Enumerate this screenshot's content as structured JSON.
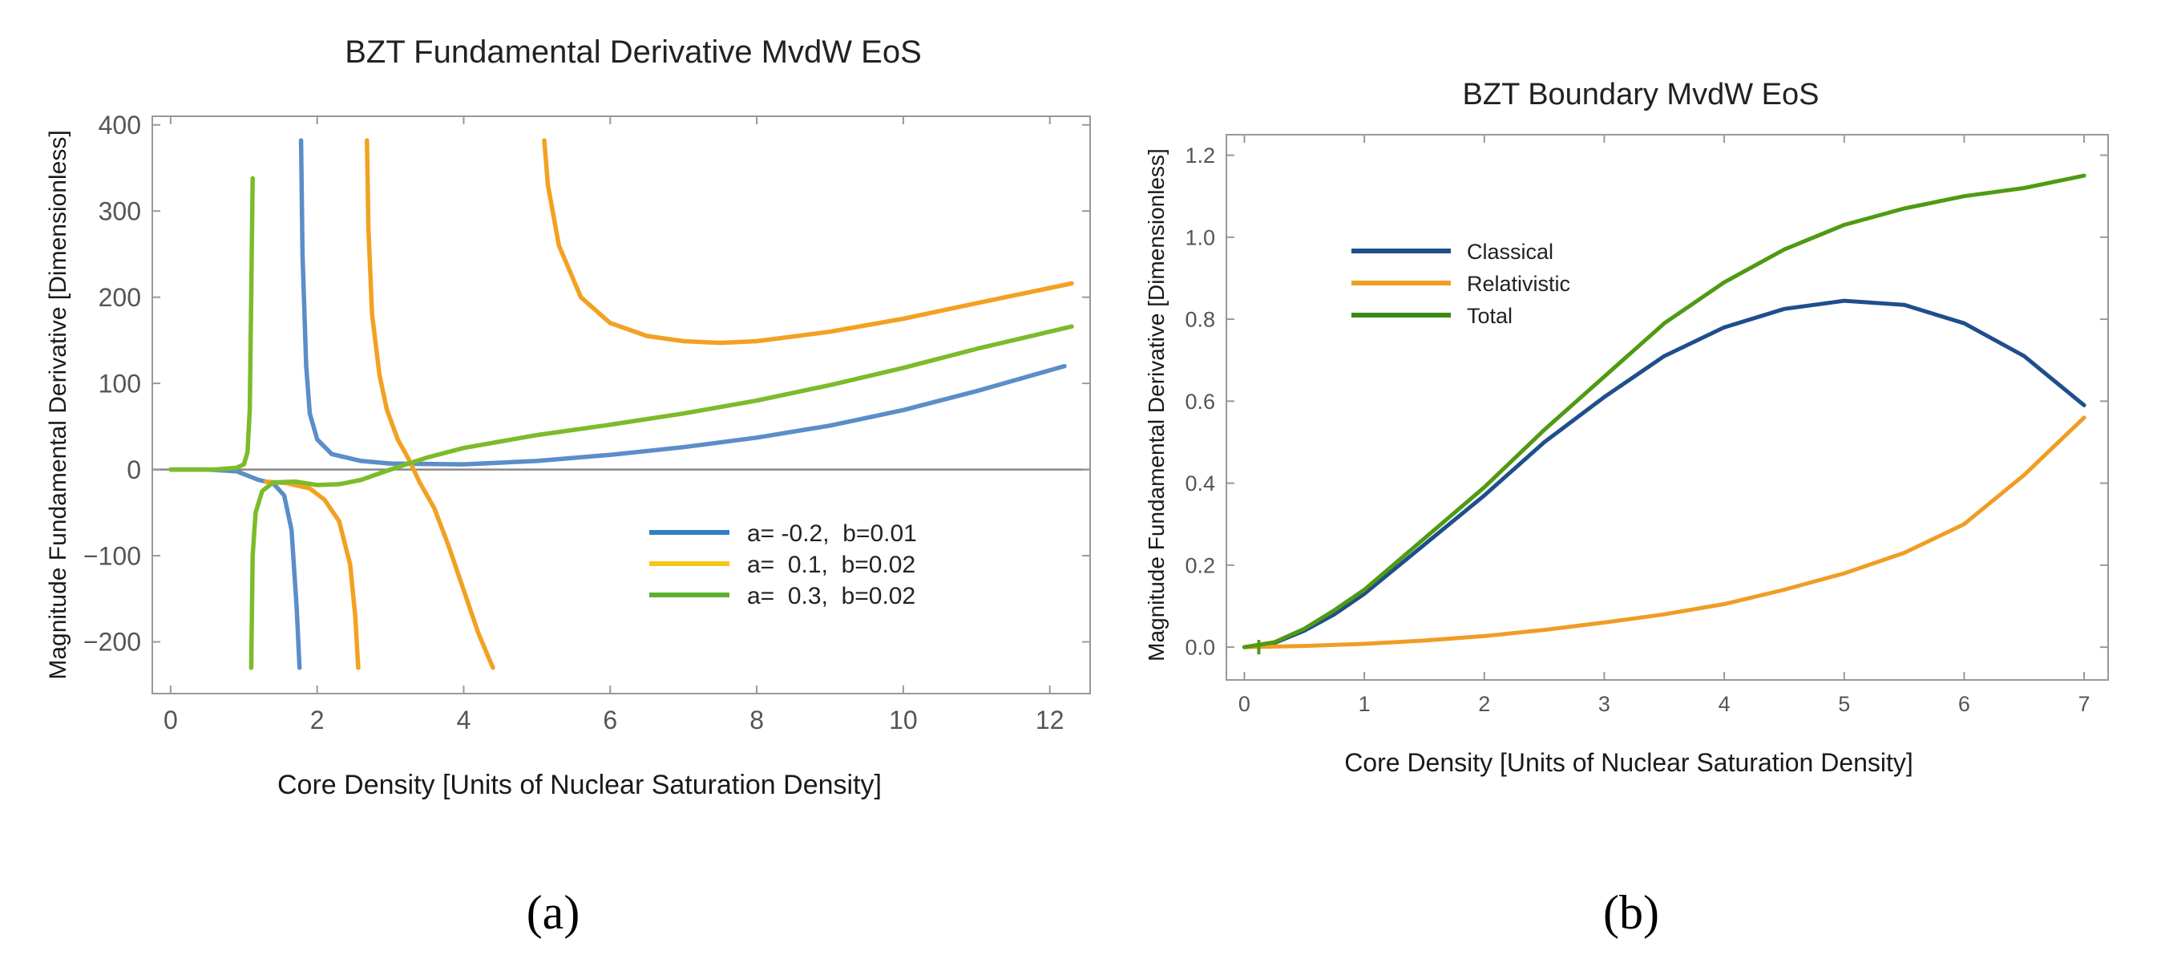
{
  "figure": {
    "panel_labels": [
      "(a)",
      "(b)"
    ],
    "colors": {
      "blue_a": "#5b8ec8",
      "orange_a": "#f2a122",
      "green_a": "#7cbb2a",
      "classical_b": "#1f4e8c",
      "relativistic_b": "#ef9d24",
      "total_b": "#4f9a12",
      "zero_line": "#888888",
      "frame": "#999999"
    }
  },
  "chart_data": [
    {
      "type": "line",
      "title": "BZT Fundamental Derivative MvdW EoS",
      "xlabel": "Core Density [Units of Nuclear Saturation Density]",
      "ylabel": "Magnitude Fundamental Derivative [Dimensionless]",
      "xlim": [
        -0.25,
        12.55
      ],
      "ylim": [
        -260,
        410
      ],
      "xticks": [
        0,
        2,
        4,
        6,
        8,
        10,
        12
      ],
      "yticks": [
        -200,
        -100,
        0,
        100,
        200,
        300,
        400
      ],
      "ytick_labels": [
        "−200",
        "−100",
        "0",
        "100",
        "200",
        "300",
        "400"
      ],
      "zero_line": true,
      "grid": false,
      "legend_position": "lower-right",
      "legend": [
        {
          "label": "a= -0.2,  b=0.01",
          "color": "#2f7fc4"
        },
        {
          "label": "a=  0.1,  b=0.02",
          "color": "#f5c518"
        },
        {
          "label": "a=  0.3,  b=0.02",
          "color": "#5bb12f"
        }
      ],
      "series": [
        {
          "color": "#5b8ec8",
          "segments": [
            [
              [
                0,
                0
              ],
              [
                0.5,
                0
              ],
              [
                0.9,
                -2
              ],
              [
                1.2,
                -12
              ],
              [
                1.4,
                -16
              ],
              [
                1.55,
                -30
              ],
              [
                1.65,
                -70
              ],
              [
                1.72,
                -160
              ],
              [
                1.76,
                -230
              ]
            ],
            [
              [
                1.78,
                382
              ],
              [
                1.8,
                250
              ],
              [
                1.85,
                120
              ],
              [
                1.9,
                65
              ],
              [
                2.0,
                35
              ],
              [
                2.2,
                18
              ],
              [
                2.6,
                10
              ],
              [
                3.0,
                7
              ],
              [
                4.0,
                6
              ],
              [
                5.0,
                10
              ],
              [
                6.0,
                17
              ],
              [
                7.0,
                26
              ],
              [
                8.0,
                37
              ],
              [
                9.0,
                51
              ],
              [
                10.0,
                69
              ],
              [
                11.0,
                91
              ],
              [
                12.2,
                120
              ]
            ]
          ]
        },
        {
          "color": "#f2a122",
          "segments": [
            [
              [
                1.3,
                -14
              ],
              [
                1.6,
                -16
              ],
              [
                1.9,
                -22
              ],
              [
                2.1,
                -35
              ],
              [
                2.3,
                -60
              ],
              [
                2.45,
                -110
              ],
              [
                2.52,
                -170
              ],
              [
                2.56,
                -230
              ]
            ],
            [
              [
                2.68,
                382
              ],
              [
                2.7,
                280
              ],
              [
                2.75,
                180
              ],
              [
                2.85,
                110
              ],
              [
                2.95,
                70
              ],
              [
                3.1,
                35
              ],
              [
                3.25,
                12
              ],
              [
                3.4,
                -15
              ],
              [
                3.6,
                -45
              ],
              [
                3.8,
                -90
              ],
              [
                4.0,
                -140
              ],
              [
                4.2,
                -190
              ],
              [
                4.4,
                -230
              ]
            ],
            [
              [
                5.1,
                382
              ],
              [
                5.15,
                330
              ],
              [
                5.3,
                260
              ],
              [
                5.6,
                200
              ],
              [
                6.0,
                170
              ],
              [
                6.5,
                155
              ],
              [
                7.0,
                149
              ],
              [
                7.5,
                147
              ],
              [
                8.0,
                149
              ],
              [
                9.0,
                160
              ],
              [
                10.0,
                175
              ],
              [
                11.0,
                193
              ],
              [
                12.3,
                216
              ]
            ]
          ]
        },
        {
          "color": "#7cbb2a",
          "segments": [
            [
              [
                0,
                0
              ],
              [
                0.6,
                0
              ],
              [
                0.9,
                2
              ],
              [
                1.0,
                6
              ],
              [
                1.05,
                20
              ],
              [
                1.08,
                70
              ],
              [
                1.1,
                200
              ],
              [
                1.12,
                338
              ]
            ],
            [
              [
                1.1,
                -230
              ],
              [
                1.12,
                -100
              ],
              [
                1.16,
                -50
              ],
              [
                1.25,
                -25
              ],
              [
                1.4,
                -15
              ],
              [
                1.7,
                -14
              ],
              [
                2.0,
                -18
              ],
              [
                2.3,
                -17
              ],
              [
                2.6,
                -12
              ],
              [
                3.0,
                0
              ],
              [
                3.5,
                14
              ],
              [
                4.0,
                25
              ],
              [
                5.0,
                40
              ],
              [
                6.0,
                52
              ],
              [
                7.0,
                65
              ],
              [
                8.0,
                80
              ],
              [
                9.0,
                98
              ],
              [
                10.0,
                118
              ],
              [
                11.0,
                140
              ],
              [
                12.3,
                166
              ]
            ]
          ]
        }
      ]
    },
    {
      "type": "line",
      "title": "BZT Boundary MvdW EoS",
      "xlabel": "Core Density [Units of Nuclear Saturation Density]",
      "ylabel": "Magnitude Fundamental Derivative [Dimensionless]",
      "xlim": [
        -0.15,
        7.2
      ],
      "ylim": [
        -0.08,
        1.25
      ],
      "xticks": [
        0,
        1,
        2,
        3,
        4,
        5,
        6,
        7
      ],
      "yticks": [
        0.0,
        0.2,
        0.4,
        0.6,
        0.8,
        1.0,
        1.2
      ],
      "ytick_labels": [
        "0.0",
        "0.2",
        "0.4",
        "0.6",
        "0.8",
        "1.0",
        "1.2"
      ],
      "grid": false,
      "legend_position": "upper-left",
      "legend": [
        {
          "label": "Classical",
          "color": "#1f4e8c"
        },
        {
          "label": "Relativistic",
          "color": "#ef9d24"
        },
        {
          "label": "Total",
          "color": "#3a8a16"
        }
      ],
      "series": [
        {
          "name": "Classical",
          "color": "#1f4e8c",
          "points": [
            [
              0,
              0
            ],
            [
              0.25,
              0.01
            ],
            [
              0.5,
              0.04
            ],
            [
              0.75,
              0.08
            ],
            [
              1.0,
              0.13
            ],
            [
              1.5,
              0.25
            ],
            [
              2.0,
              0.37
            ],
            [
              2.5,
              0.5
            ],
            [
              3.0,
              0.61
            ],
            [
              3.5,
              0.71
            ],
            [
              4.0,
              0.78
            ],
            [
              4.5,
              0.825
            ],
            [
              5.0,
              0.845
            ],
            [
              5.5,
              0.835
            ],
            [
              6.0,
              0.79
            ],
            [
              6.5,
              0.71
            ],
            [
              7.0,
              0.59
            ]
          ]
        },
        {
          "name": "Relativistic",
          "color": "#ef9d24",
          "points": [
            [
              0,
              0
            ],
            [
              0.5,
              0.003
            ],
            [
              1.0,
              0.008
            ],
            [
              1.5,
              0.016
            ],
            [
              2.0,
              0.027
            ],
            [
              2.5,
              0.042
            ],
            [
              3.0,
              0.06
            ],
            [
              3.5,
              0.08
            ],
            [
              4.0,
              0.105
            ],
            [
              4.5,
              0.14
            ],
            [
              5.0,
              0.18
            ],
            [
              5.5,
              0.23
            ],
            [
              6.0,
              0.3
            ],
            [
              6.5,
              0.42
            ],
            [
              7.0,
              0.56
            ]
          ]
        },
        {
          "name": "Total",
          "color": "#4f9a12",
          "points": [
            [
              0,
              0
            ],
            [
              0.25,
              0.012
            ],
            [
              0.5,
              0.045
            ],
            [
              0.75,
              0.09
            ],
            [
              1.0,
              0.14
            ],
            [
              1.5,
              0.265
            ],
            [
              2.0,
              0.39
            ],
            [
              2.5,
              0.53
            ],
            [
              3.0,
              0.66
            ],
            [
              3.5,
              0.79
            ],
            [
              4.0,
              0.89
            ],
            [
              4.5,
              0.97
            ],
            [
              5.0,
              1.03
            ],
            [
              5.5,
              1.07
            ],
            [
              6.0,
              1.1
            ],
            [
              6.5,
              1.12
            ],
            [
              7.0,
              1.15
            ]
          ]
        }
      ]
    }
  ]
}
